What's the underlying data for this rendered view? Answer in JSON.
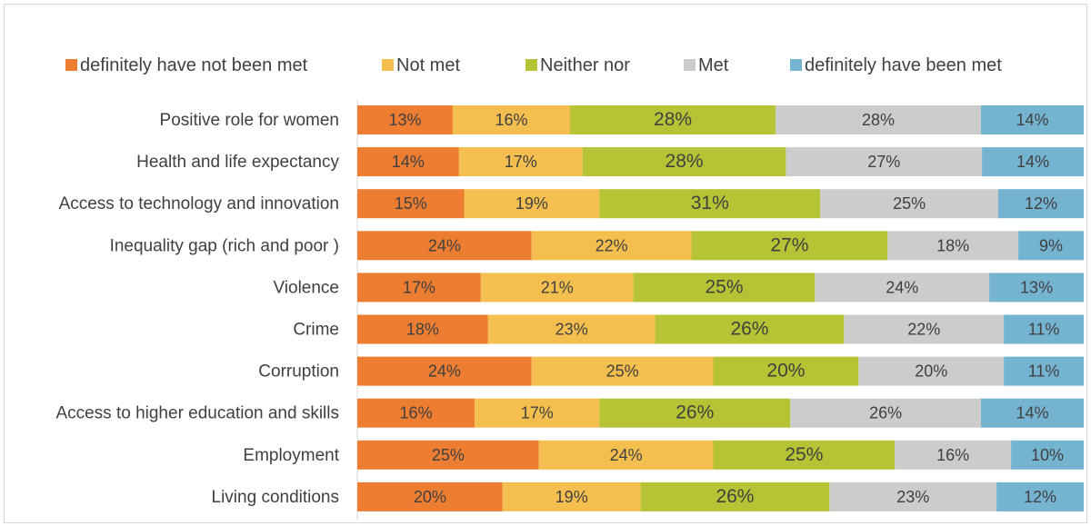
{
  "chart_data": {
    "type": "bar",
    "orientation": "horizontal",
    "stacked": "percent",
    "title": "",
    "xlabel": "",
    "ylabel": "",
    "xlim": [
      0,
      100
    ],
    "grid": false,
    "legend_position": "top",
    "categories": [
      "Positive role for women",
      "Health and life expectancy",
      "Access to technology and innovation",
      "Inequality gap (rich and poor )",
      "Violence",
      "Crime ",
      "Corruption",
      "Access to higher education and skills",
      "Employment ",
      "Living conditions "
    ],
    "series": [
      {
        "name": "definitely have not been met",
        "color": "#ED7D31",
        "values": [
          13,
          14,
          15,
          24,
          17,
          18,
          24,
          16,
          25,
          20
        ]
      },
      {
        "name": "Not met",
        "color": "#F4BF4F",
        "values": [
          16,
          17,
          19,
          22,
          21,
          23,
          25,
          17,
          24,
          19
        ]
      },
      {
        "name": "Neither nor",
        "color": "#B5C334",
        "values": [
          28,
          28,
          31,
          27,
          25,
          26,
          20,
          26,
          25,
          26
        ]
      },
      {
        "name": "Met",
        "color": "#CCCCCC",
        "values": [
          28,
          27,
          25,
          18,
          24,
          22,
          20,
          26,
          16,
          23
        ]
      },
      {
        "name": "definitely have been met",
        "color": "#74B4D0",
        "values": [
          14,
          14,
          12,
          9,
          13,
          11,
          11,
          14,
          10,
          12
        ]
      }
    ]
  }
}
